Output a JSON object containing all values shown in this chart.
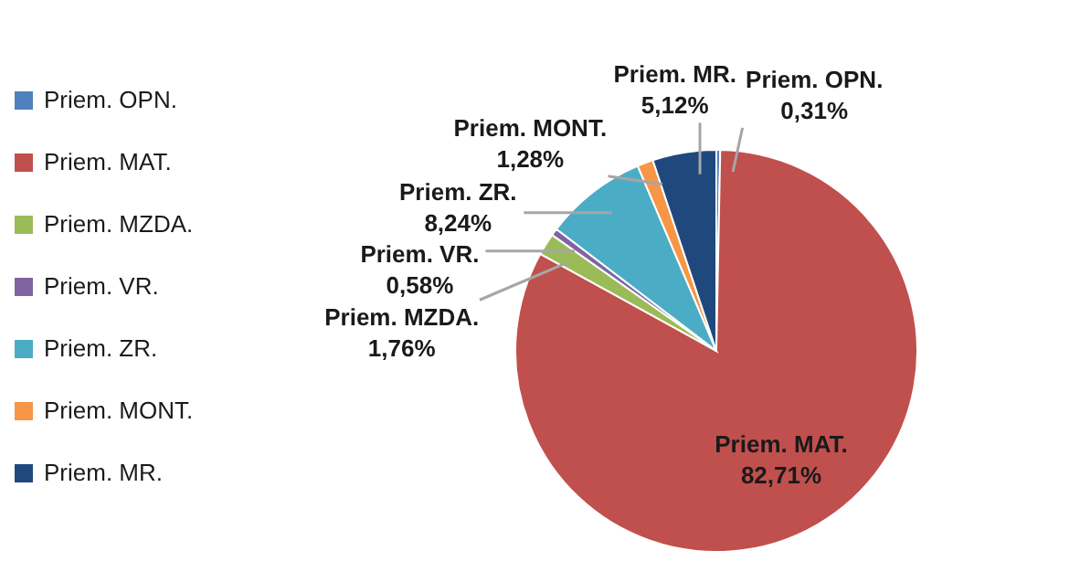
{
  "chart_data": {
    "type": "pie",
    "categories": [
      "Priem. OPN.",
      "Priem. MAT.",
      "Priem. MZDA.",
      "Priem. VR.",
      "Priem. ZR.",
      "Priem. MONT.",
      "Priem. MR."
    ],
    "values": [
      0.31,
      82.71,
      1.76,
      0.58,
      8.24,
      1.28,
      5.12
    ],
    "colors": [
      "#4f81bd",
      "#c0504d",
      "#9bbb59",
      "#8064a2",
      "#4bacc6",
      "#f79646",
      "#1f497d"
    ],
    "value_labels": [
      "0,31%",
      "82,71%",
      "1,76%",
      "0,58%",
      "8,24%",
      "1,28%",
      "5,12%"
    ],
    "legend": "left"
  }
}
